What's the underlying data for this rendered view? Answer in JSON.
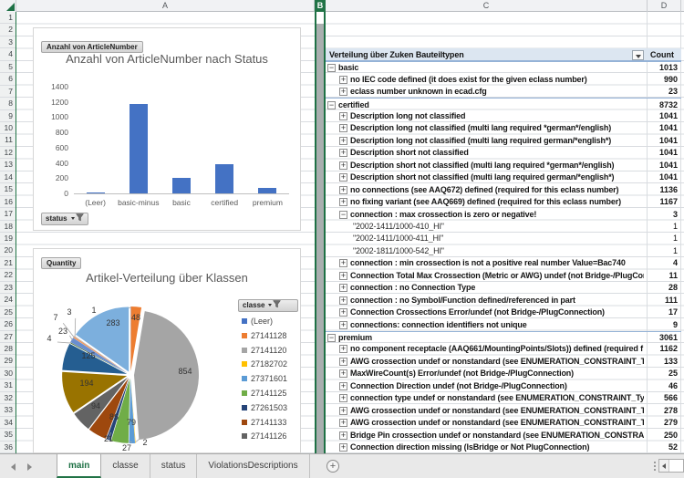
{
  "spreadsheet": {
    "columns": [
      "A",
      "B",
      "C",
      "D"
    ],
    "selected_column": "B",
    "rows_visible": 36
  },
  "pivot": {
    "title": "Verteilung über Zuken Bauteiltypen",
    "count_header": "Count",
    "rows": [
      {
        "label": "basic",
        "count": 1013,
        "level": 1,
        "icon": "minus"
      },
      {
        "label": "no IEC code defined (it does exist for the given eclass number)",
        "count": 990,
        "level": 2,
        "icon": "plus"
      },
      {
        "label": "eclass number unknown in ecad.cfg",
        "count": 23,
        "level": 2,
        "icon": "plus"
      },
      {
        "label": "certified",
        "count": 8732,
        "level": 1,
        "icon": "minus"
      },
      {
        "label": "Description long not classified",
        "count": 1041,
        "level": 2,
        "icon": "plus"
      },
      {
        "label": "Description long not classified (multi lang required *german*/english)",
        "count": 1041,
        "level": 2,
        "icon": "plus"
      },
      {
        "label": "Description long not classified (multi lang required german/*english*)",
        "count": 1041,
        "level": 2,
        "icon": "plus"
      },
      {
        "label": "Description short not classified",
        "count": 1041,
        "level": 2,
        "icon": "plus"
      },
      {
        "label": "Description short not classified (multi lang required *german*/english)",
        "count": 1041,
        "level": 2,
        "icon": "plus"
      },
      {
        "label": "Description short not classified (multi lang required german/*english*)",
        "count": 1041,
        "level": 2,
        "icon": "plus"
      },
      {
        "label": "no connections (see AAQ672) defined (required for this eclass number)",
        "count": 1136,
        "level": 2,
        "icon": "plus"
      },
      {
        "label": "no fixing variant (see AAQ669) defined (required for this eclass number)",
        "count": 1167,
        "level": 2,
        "icon": "plus"
      },
      {
        "label": "connection : max crossection is zero or negative!",
        "count": 3,
        "level": 2,
        "icon": "minus"
      },
      {
        "label": "\"2002-1411/1000-410_HI\"",
        "count": 1,
        "level": 3,
        "icon": "none"
      },
      {
        "label": "\"2002-1411/1000-411_HI\"",
        "count": 1,
        "level": 3,
        "icon": "none"
      },
      {
        "label": "\"2002-1811/1000-542_HI\"",
        "count": 1,
        "level": 3,
        "icon": "none"
      },
      {
        "label": "connection : min crossection is not a positive real number Value=Bac740",
        "count": 4,
        "level": 2,
        "icon": "plus"
      },
      {
        "label": "Connection Total Max Crossection (Metric or AWG) undef (not Bridge-/PlugCon",
        "count": 11,
        "level": 2,
        "icon": "plus"
      },
      {
        "label": "connection : no Connection Type",
        "count": 28,
        "level": 2,
        "icon": "plus"
      },
      {
        "label": "connection : no Symbol/Function defined/referenced in part",
        "count": 111,
        "level": 2,
        "icon": "plus"
      },
      {
        "label": "Connection Crossections Error/undef (not Bridge-/PlugConnection)",
        "count": 17,
        "level": 2,
        "icon": "plus"
      },
      {
        "label": "connections: connection identifiers not unique",
        "count": 9,
        "level": 2,
        "icon": "plus"
      },
      {
        "label": "premium",
        "count": 3061,
        "level": 1,
        "icon": "minus"
      },
      {
        "label": "no component receptacle (AAQ661/MountingPoints/Slots)) defined (required f",
        "count": 1162,
        "level": 2,
        "icon": "plus"
      },
      {
        "label": "AWG crossection undef or nonstandard (see ENUMERATION_CONSTRAINT_Typ",
        "count": 133,
        "level": 2,
        "icon": "plus"
      },
      {
        "label": "MaxWireCount(s) Error/undef (not Bridge-/PlugConnection)",
        "count": 25,
        "level": 2,
        "icon": "plus"
      },
      {
        "label": "Connection Direction undef (not Bridge-/PlugConnection)",
        "count": 46,
        "level": 2,
        "icon": "plus"
      },
      {
        "label": "connection type undef or nonstandard (see ENUMERATION_CONSTRAINT_Type",
        "count": 566,
        "level": 2,
        "icon": "plus"
      },
      {
        "label": "AWG crossection undef or nonstandard (see ENUMERATION_CONSTRAINT_Typ",
        "count": 278,
        "level": 2,
        "icon": "plus"
      },
      {
        "label": "AWG crossection undef or nonstandard (see ENUMERATION_CONSTRAINT_Typ",
        "count": 279,
        "level": 2,
        "icon": "plus"
      },
      {
        "label": "Bridge Pin crossection undef or nonstandard (see ENUMERATION_CONSTRAINT_",
        "count": 250,
        "level": 2,
        "icon": "plus"
      },
      {
        "label": "Connection direction missing (IsBridge or Not PlugConnection)",
        "count": 52,
        "level": 2,
        "icon": "plus"
      }
    ]
  },
  "chart_data": [
    {
      "type": "bar",
      "title": "Anzahl von ArticleNumber nach Status",
      "field_button": "Anzahl von ArticleNumber",
      "filter_button": "status",
      "categories": [
        "(Leer)",
        "basic-minus",
        "basic",
        "certified",
        "premium"
      ],
      "values": [
        1,
        1170,
        200,
        380,
        70
      ],
      "ylim": [
        0,
        1400
      ],
      "ytick_step": 200,
      "bar_color": "#4472C4",
      "grid": false,
      "legend": "none"
    },
    {
      "type": "pie",
      "title": "Artikel-Verteilung über Klassen",
      "field_button": "Quantity",
      "legend_filter_button": "classe",
      "legend_position": "right",
      "slices": [
        {
          "name": "(Leer)",
          "value": 1,
          "color": "#4472C4"
        },
        {
          "name": "27141128",
          "value": 48,
          "color": "#ED7D31"
        },
        {
          "name": "27141120",
          "value": 854,
          "color": "#A5A5A5"
        },
        {
          "name": "27182702",
          "value": 2,
          "color": "#FFC000"
        },
        {
          "name": "27371601",
          "value": 27,
          "color": "#5B9BD5"
        },
        {
          "name": "27141125",
          "value": 79,
          "color": "#70AD47"
        },
        {
          "name": "27261503",
          "value": 21,
          "color": "#264478"
        },
        {
          "name": "27141133",
          "value": 86,
          "color": "#9E480E"
        },
        {
          "name": "27141126",
          "value": 94,
          "color": "#636363"
        },
        {
          "value": 194,
          "color": "#997300"
        },
        {
          "value": 125,
          "color": "#255E91"
        },
        {
          "value": 4,
          "color": "#43682B"
        },
        {
          "value": 23,
          "color": "#698ED0"
        },
        {
          "value": 7,
          "color": "#F1975A"
        },
        {
          "value": 3,
          "color": "#B7B7B7"
        },
        {
          "value": 283,
          "color": "#7CAFDD"
        }
      ]
    }
  ],
  "sheet_bar": {
    "tabs": [
      {
        "label": "main",
        "active": true
      },
      {
        "label": "classe",
        "active": false
      },
      {
        "label": "status",
        "active": false
      },
      {
        "label": "ViolationsDescriptions",
        "active": false
      }
    ]
  }
}
